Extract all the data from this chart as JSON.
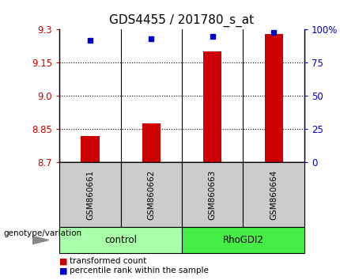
{
  "title": "GDS4455 / 201780_s_at",
  "samples": [
    "GSM860661",
    "GSM860662",
    "GSM860663",
    "GSM860664"
  ],
  "groups": [
    "control",
    "control",
    "RhoGDI2",
    "RhoGDI2"
  ],
  "group_colors": {
    "control": "#aaffaa",
    "RhoGDI2": "#44ee44"
  },
  "red_values": [
    8.82,
    8.875,
    9.2,
    9.28
  ],
  "blue_values": [
    92,
    93,
    95,
    98
  ],
  "y_min": 8.7,
  "y_max": 9.3,
  "y_ticks_left": [
    8.7,
    8.85,
    9.0,
    9.15,
    9.3
  ],
  "y_ticks_right": [
    0,
    25,
    50,
    75,
    100
  ],
  "y_ticks_right_labels": [
    "0",
    "25",
    "50",
    "75",
    "100%"
  ],
  "bar_color": "#cc0000",
  "dot_color": "#0000cc",
  "bar_width": 0.3,
  "legend_red": "transformed count",
  "legend_blue": "percentile rank within the sample",
  "xlabel_genotype": "genotype/variation",
  "sample_box_color": "#cccccc",
  "background_color": "#ffffff"
}
